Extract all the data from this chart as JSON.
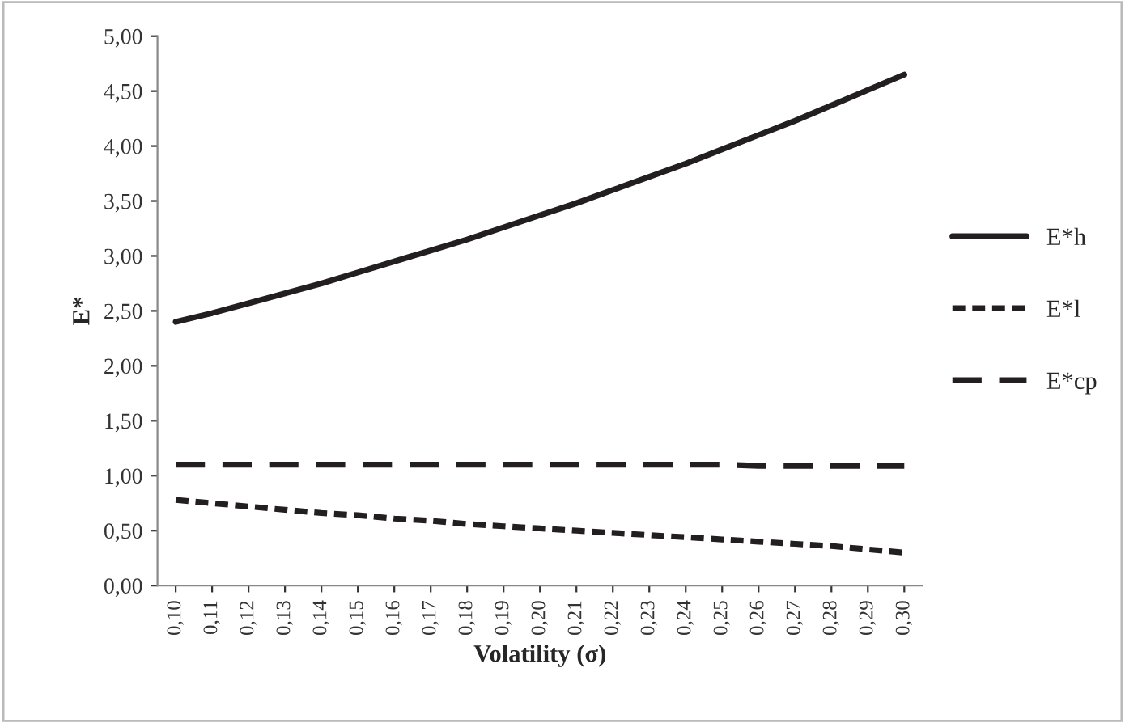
{
  "chart_data": {
    "type": "line",
    "xlabel": "Volatility (σ)",
    "ylabel": "E*",
    "categories": [
      "0,10",
      "0,11",
      "0,12",
      "0,13",
      "0,14",
      "0,15",
      "0,16",
      "0,17",
      "0,18",
      "0,19",
      "0,20",
      "0,21",
      "0,22",
      "0,23",
      "0,24",
      "0,25",
      "0,26",
      "0,27",
      "0,28",
      "0,29",
      "0,30"
    ],
    "series": [
      {
        "name": "E*h",
        "color": "#231f20",
        "line_style": "solid",
        "values": [
          2.4,
          2.48,
          2.57,
          2.66,
          2.75,
          2.85,
          2.95,
          3.05,
          3.15,
          3.26,
          3.37,
          3.48,
          3.6,
          3.72,
          3.84,
          3.97,
          4.1,
          4.23,
          4.37,
          4.51,
          4.65
        ]
      },
      {
        "name": "E*l",
        "color": "#231f20",
        "line_style": "dotted",
        "values": [
          0.78,
          0.75,
          0.72,
          0.69,
          0.66,
          0.64,
          0.61,
          0.59,
          0.56,
          0.54,
          0.52,
          0.5,
          0.48,
          0.46,
          0.44,
          0.42,
          0.4,
          0.38,
          0.36,
          0.33,
          0.3
        ]
      },
      {
        "name": "E*cp",
        "color": "#231f20",
        "line_style": "dashed",
        "values": [
          1.1,
          1.1,
          1.1,
          1.1,
          1.1,
          1.1,
          1.1,
          1.1,
          1.1,
          1.1,
          1.1,
          1.1,
          1.1,
          1.1,
          1.1,
          1.1,
          1.09,
          1.09,
          1.09,
          1.09,
          1.09
        ]
      }
    ],
    "ylim": [
      0,
      5
    ],
    "yticks": [
      {
        "value": 0,
        "label": "0,00"
      },
      {
        "value": 0.5,
        "label": "0,50"
      },
      {
        "value": 1,
        "label": "1,00"
      },
      {
        "value": 1.5,
        "label": "1,50"
      },
      {
        "value": 2,
        "label": "2,00"
      },
      {
        "value": 2.5,
        "label": "2,50"
      },
      {
        "value": 3,
        "label": "3,00"
      },
      {
        "value": 3.5,
        "label": "3,50"
      },
      {
        "value": 4,
        "label": "4,00"
      },
      {
        "value": 4.5,
        "label": "4,50"
      },
      {
        "value": 5,
        "label": "5,00"
      }
    ],
    "grid": false,
    "legend": "right",
    "marker": "none"
  }
}
